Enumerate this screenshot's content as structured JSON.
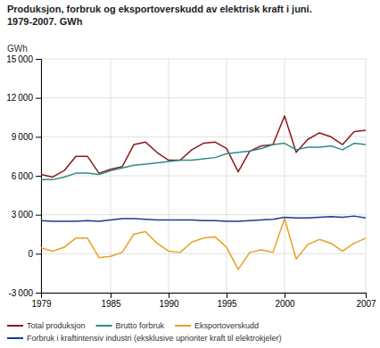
{
  "chart_data": {
    "type": "line",
    "title": "Produksjon, forbruk og eksportoverskudd av elektrisk kraft i juni.",
    "subtitle": "1979-2007. GWh",
    "ylabel": "GWh",
    "x": [
      1979,
      1980,
      1981,
      1982,
      1983,
      1984,
      1985,
      1986,
      1987,
      1988,
      1989,
      1990,
      1991,
      1992,
      1993,
      1994,
      1995,
      1996,
      1997,
      1998,
      1999,
      2000,
      2001,
      2002,
      2003,
      2004,
      2005,
      2006,
      2007
    ],
    "series": [
      {
        "name": "Total produksjon",
        "color": "#8B1A1A",
        "values": [
          6100,
          5900,
          6400,
          7500,
          7500,
          6200,
          6500,
          6700,
          8400,
          8600,
          7800,
          7200,
          7200,
          8000,
          8500,
          8600,
          8100,
          6300,
          7900,
          8300,
          8400,
          10600,
          7800,
          8800,
          9300,
          9000,
          8400,
          9400,
          9500
        ]
      },
      {
        "name": "Brutto forbruk",
        "color": "#2E8B8B",
        "values": [
          5700,
          5700,
          5900,
          6200,
          6200,
          6100,
          6400,
          6600,
          6800,
          6900,
          7000,
          7100,
          7200,
          7200,
          7300,
          7400,
          7700,
          7800,
          7900,
          8100,
          8400,
          8500,
          8000,
          8200,
          8200,
          8300,
          8000,
          8500,
          8400
        ]
      },
      {
        "name": "Eksportoverskudd",
        "color": "#E8A020",
        "values": [
          450,
          200,
          500,
          1200,
          1200,
          -300,
          -200,
          100,
          1500,
          1700,
          800,
          200,
          100,
          900,
          1200,
          1300,
          500,
          -1200,
          100,
          300,
          100,
          2700,
          -400,
          700,
          1100,
          800,
          200,
          800,
          1200
        ]
      },
      {
        "name": "Forbruk i kraftintensiv industri (eksklusive uprioriter kraft til elektrokjeler)",
        "color": "#1C3899",
        "values": [
          2550,
          2500,
          2500,
          2500,
          2550,
          2500,
          2600,
          2700,
          2700,
          2650,
          2600,
          2600,
          2600,
          2600,
          2550,
          2550,
          2500,
          2500,
          2550,
          2600,
          2650,
          2800,
          2750,
          2750,
          2800,
          2850,
          2800,
          2900,
          2750
        ]
      }
    ],
    "xlim": [
      1979,
      2007
    ],
    "xticks": [
      1979,
      1985,
      1990,
      1995,
      2000,
      2007
    ],
    "ylim": [
      -3000,
      15000
    ],
    "yticks": [
      {
        "value": -3000,
        "label": "-3 000"
      },
      0,
      {
        "value": 3000,
        "label": "3 000"
      },
      {
        "value": 6000,
        "label": "6 000"
      },
      {
        "value": 9000,
        "label": "9 000"
      },
      {
        "value": 12000,
        "label": "12 000"
      },
      {
        "value": 15000,
        "label": "15 000"
      }
    ],
    "grid": true,
    "legend": "bottom"
  }
}
